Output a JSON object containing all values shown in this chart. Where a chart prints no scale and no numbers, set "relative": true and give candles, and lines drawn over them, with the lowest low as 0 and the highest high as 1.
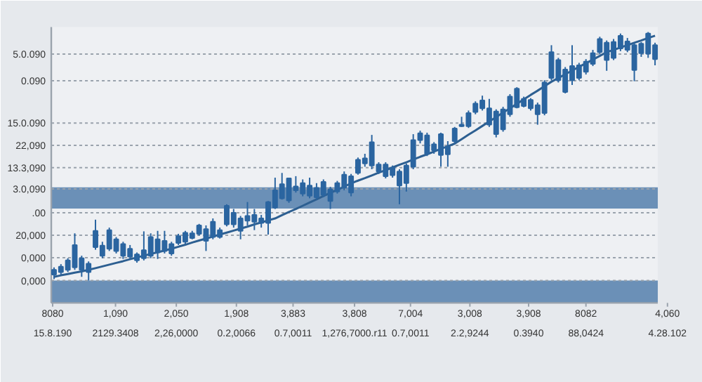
{
  "chart_data": {
    "type": "candlestick",
    "color": "#2b65a0",
    "relative": true,
    "categories": [
      null,
      null,
      null,
      null,
      null,
      null,
      null,
      null,
      null,
      null,
      null,
      null,
      null,
      null,
      null,
      null,
      null,
      null,
      null,
      null,
      null,
      null,
      null,
      null,
      null,
      null,
      null,
      null,
      null,
      null,
      null,
      null,
      null,
      null,
      null,
      null,
      null,
      null,
      null,
      null,
      null,
      null,
      null,
      null,
      null,
      null,
      null,
      null,
      null,
      null,
      null,
      null,
      null,
      null,
      null,
      null,
      null,
      null,
      null,
      null,
      null,
      null,
      null,
      null,
      null,
      null,
      null,
      null,
      null,
      null,
      null,
      null,
      null,
      null,
      null,
      null,
      null,
      null,
      null,
      null,
      null,
      null,
      null,
      null,
      null,
      null,
      null,
      null
    ],
    "ohlc": [
      [
        0.024,
        0.053,
        0.006,
        0.043
      ],
      [
        0.034,
        0.066,
        0.024,
        0.056
      ],
      [
        0.043,
        0.09,
        0.034,
        0.081
      ],
      [
        0.053,
        0.19,
        0.043,
        0.143
      ],
      [
        0.043,
        0.1,
        0.015,
        0.09
      ],
      [
        0.034,
        0.077,
        0.0,
        0.068
      ],
      [
        0.134,
        0.245,
        0.124,
        0.2
      ],
      [
        0.1,
        0.156,
        0.09,
        0.141
      ],
      [
        0.128,
        0.213,
        0.119,
        0.203
      ],
      [
        0.119,
        0.175,
        0.109,
        0.166
      ],
      [
        0.1,
        0.156,
        0.087,
        0.147
      ],
      [
        0.096,
        0.143,
        0.085,
        0.128
      ],
      [
        0.081,
        0.113,
        0.072,
        0.105
      ],
      [
        0.09,
        0.198,
        0.081,
        0.122
      ],
      [
        0.1,
        0.19,
        0.09,
        0.175
      ],
      [
        0.113,
        0.2,
        0.087,
        0.166
      ],
      [
        0.119,
        0.2,
        0.109,
        0.16
      ],
      [
        0.109,
        0.156,
        0.1,
        0.147
      ],
      [
        0.151,
        0.188,
        0.143,
        0.179
      ],
      [
        0.156,
        0.2,
        0.147,
        0.192
      ],
      [
        0.171,
        0.2,
        0.166,
        0.19
      ],
      [
        0.188,
        0.228,
        0.181,
        0.222
      ],
      [
        0.16,
        0.222,
        0.119,
        0.207
      ],
      [
        0.175,
        0.25,
        0.166,
        0.237
      ],
      [
        0.175,
        0.213,
        0.169,
        0.203
      ],
      [
        0.226,
        0.307,
        0.218,
        0.301
      ],
      [
        0.226,
        0.288,
        0.213,
        0.273
      ],
      [
        0.2,
        0.26,
        0.166,
        0.25
      ],
      [
        0.241,
        0.316,
        0.222,
        0.26
      ],
      [
        0.237,
        0.288,
        0.203,
        0.264
      ],
      [
        0.232,
        0.264,
        0.213,
        0.25
      ],
      [
        0.232,
        0.32,
        0.185,
        0.316
      ],
      [
        0.294,
        0.414,
        0.288,
        0.363
      ],
      [
        0.331,
        0.433,
        0.326,
        0.388
      ],
      [
        0.322,
        0.414,
        0.313,
        0.411
      ],
      [
        0.363,
        0.42,
        0.354,
        0.379
      ],
      [
        0.35,
        0.407,
        0.339,
        0.392
      ],
      [
        0.341,
        0.414,
        0.331,
        0.382
      ],
      [
        0.335,
        0.392,
        0.326,
        0.373
      ],
      [
        0.345,
        0.407,
        0.335,
        0.397
      ],
      [
        0.32,
        0.377,
        0.288,
        0.367
      ],
      [
        0.358,
        0.401,
        0.35,
        0.392
      ],
      [
        0.373,
        0.439,
        0.363,
        0.426
      ],
      [
        0.354,
        0.429,
        0.339,
        0.42
      ],
      [
        0.433,
        0.495,
        0.426,
        0.486
      ],
      [
        0.471,
        0.51,
        0.458,
        0.492
      ],
      [
        0.463,
        0.586,
        0.448,
        0.557
      ],
      [
        0.439,
        0.476,
        0.429,
        0.467
      ],
      [
        0.42,
        0.476,
        0.411,
        0.467
      ],
      [
        0.424,
        0.463,
        0.414,
        0.454
      ],
      [
        0.382,
        0.448,
        0.307,
        0.439
      ],
      [
        0.392,
        0.471,
        0.358,
        0.463
      ],
      [
        0.458,
        0.589,
        0.448,
        0.565
      ],
      [
        0.565,
        0.603,
        0.552,
        0.593
      ],
      [
        0.51,
        0.595,
        0.501,
        0.584
      ],
      [
        0.524,
        0.557,
        0.51,
        0.548
      ],
      [
        0.505,
        0.595,
        0.458,
        0.589
      ],
      [
        0.508,
        0.561,
        0.458,
        0.539
      ],
      [
        0.561,
        0.618,
        0.552,
        0.612
      ],
      [
        0.621,
        0.659,
        0.618,
        0.627
      ],
      [
        0.621,
        0.684,
        0.614,
        0.674
      ],
      [
        0.678,
        0.721,
        0.669,
        0.712
      ],
      [
        0.693,
        0.744,
        0.684,
        0.725
      ],
      [
        0.627,
        0.731,
        0.618,
        0.693
      ],
      [
        0.589,
        0.689,
        0.576,
        0.68
      ],
      [
        0.608,
        0.699,
        0.599,
        0.689
      ],
      [
        0.669,
        0.75,
        0.659,
        0.74
      ],
      [
        0.697,
        0.778,
        0.693,
        0.772
      ],
      [
        0.702,
        0.74,
        0.697,
        0.731
      ],
      [
        0.693,
        0.734,
        0.684,
        0.727
      ],
      [
        0.669,
        0.716,
        0.627,
        0.706
      ],
      [
        0.674,
        0.806,
        0.665,
        0.797
      ],
      [
        0.815,
        0.947,
        0.806,
        0.919
      ],
      [
        0.806,
        0.896,
        0.797,
        0.887
      ],
      [
        0.759,
        0.859,
        0.753,
        0.849
      ],
      [
        0.806,
        0.947,
        0.787,
        0.863
      ],
      [
        0.815,
        0.876,
        0.806,
        0.866
      ],
      [
        0.84,
        0.891,
        0.829,
        0.881
      ],
      [
        0.872,
        0.928,
        0.863,
        0.915
      ],
      [
        0.919,
        0.981,
        0.91,
        0.972
      ],
      [
        0.887,
        0.966,
        0.844,
        0.957
      ],
      [
        0.896,
        0.972,
        0.887,
        0.96
      ],
      [
        0.934,
        0.994,
        0.923,
        0.985
      ],
      [
        0.928,
        0.976,
        0.919,
        0.962
      ],
      [
        0.847,
        0.957,
        0.802,
        0.947
      ],
      [
        0.915,
        0.96,
        0.9,
        0.953
      ],
      [
        0.913,
        1.0,
        0.896,
        0.994
      ],
      [
        0.891,
        0.957,
        0.866,
        0.947
      ]
    ],
    "series": [
      {
        "type": "line",
        "color": "#2d5f91",
        "values": [
          0.015,
          0.021,
          0.026,
          0.032,
          0.037,
          0.043,
          0.05,
          0.057,
          0.064,
          0.071,
          0.078,
          0.086,
          0.093,
          0.1,
          0.107,
          0.114,
          0.121,
          0.128,
          0.136,
          0.144,
          0.153,
          0.161,
          0.169,
          0.177,
          0.185,
          0.193,
          0.201,
          0.209,
          0.217,
          0.226,
          0.234,
          0.242,
          0.25,
          0.263,
          0.276,
          0.288,
          0.301,
          0.314,
          0.327,
          0.34,
          0.353,
          0.365,
          0.378,
          0.391,
          0.402,
          0.412,
          0.423,
          0.434,
          0.444,
          0.455,
          0.466,
          0.476,
          0.487,
          0.498,
          0.508,
          0.519,
          0.53,
          0.54,
          0.551,
          0.569,
          0.587,
          0.604,
          0.622,
          0.64,
          0.658,
          0.676,
          0.693,
          0.711,
          0.729,
          0.747,
          0.764,
          0.782,
          0.8,
          0.815,
          0.83,
          0.845,
          0.86,
          0.874,
          0.889,
          0.904,
          0.919,
          0.928,
          0.938,
          0.947,
          0.957,
          0.966,
          0.976,
          0.985
        ]
      }
    ],
    "annotations": [
      "5.0.090",
      "0.090",
      "15.0.090",
      "22,090",
      "13.3,090",
      "3.0,090",
      ".00",
      "20,000",
      "0,000",
      "0,000",
      "8080\n15.8.190",
      "1,090\n2129.3408",
      "2,050\n2,26,0000",
      "1,908\n0.2,0066",
      "3,883\n0.7,0011",
      "3,808\n1,276,7000.r11",
      "7,004\n0.7,0011",
      "3,008\n2.2,9244",
      "3,908\n0.3940",
      "8082\n88,0424",
      "4,060\n4.28.102"
    ],
    "bands": [
      {
        "axis": "y",
        "from": 0.29,
        "to": 0.375,
        "color": "#4a78a8"
      },
      {
        "axis": "y",
        "from": -0.09,
        "to": 0.0,
        "color": "#4a78a8"
      }
    ],
    "grid": "y"
  }
}
